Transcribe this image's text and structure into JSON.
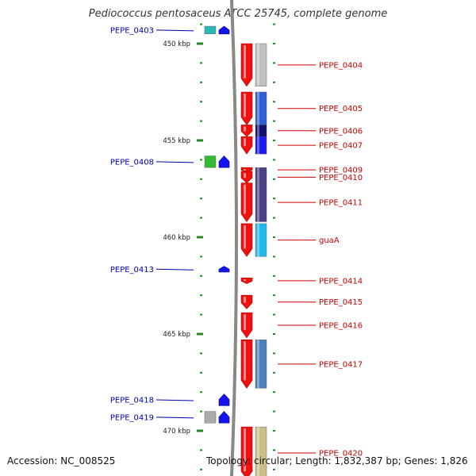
{
  "title": "Pediococcus pentosaceus ATCC 25745, complete genome",
  "accession": "Accession: NC_008525",
  "topology": "Topology: circular; Length: 1,832,387 bp; Genes: 1,826",
  "colors": {
    "forward_label": "#0000aa",
    "reverse_label": "#cc0000",
    "backbone": "#888888",
    "tick": "#228b22"
  },
  "ruler": [
    {
      "label": "450 kbp",
      "kbp": 450
    },
    {
      "label": "455 kbp",
      "kbp": 455
    },
    {
      "label": "460 kbp",
      "kbp": 460
    },
    {
      "label": "465 kbp",
      "kbp": 465
    },
    {
      "label": "470 kbp",
      "kbp": 470
    }
  ],
  "genes": [
    {
      "name": "PEPE_0403",
      "strand": "forward",
      "start_kbp": 449.1,
      "end_kbp": 449.5,
      "track_color": "#2cb8b8"
    },
    {
      "name": "PEPE_0404",
      "strand": "reverse",
      "start_kbp": 450.0,
      "end_kbp": 452.2,
      "track_color": "#c0c0c0"
    },
    {
      "name": "PEPE_0405",
      "strand": "reverse",
      "start_kbp": 452.5,
      "end_kbp": 454.2,
      "track_color": "#2f5fd0"
    },
    {
      "name": "PEPE_0406",
      "strand": "reverse",
      "start_kbp": 454.2,
      "end_kbp": 454.8,
      "track_color": "#101070"
    },
    {
      "name": "PEPE_0407",
      "strand": "reverse",
      "start_kbp": 454.8,
      "end_kbp": 455.7,
      "track_color": "#1a1aee"
    },
    {
      "name": "PEPE_0408",
      "strand": "forward",
      "start_kbp": 455.8,
      "end_kbp": 456.4,
      "track_color": "#33bb33"
    },
    {
      "name": "PEPE_0409",
      "strand": "reverse",
      "start_kbp": 456.4,
      "end_kbp": 456.6,
      "track_color": "#4b3f88"
    },
    {
      "name": "PEPE_0410",
      "strand": "reverse",
      "start_kbp": 456.6,
      "end_kbp": 457.2,
      "track_color": "#4b3f88"
    },
    {
      "name": "PEPE_0411",
      "strand": "reverse",
      "start_kbp": 457.2,
      "end_kbp": 459.2,
      "track_color": "#4b3f88"
    },
    {
      "name": "guaA",
      "strand": "reverse",
      "start_kbp": 459.3,
      "end_kbp": 461.0,
      "track_color": "#22b8e8"
    },
    {
      "name": "PEPE_0413",
      "strand": "forward",
      "start_kbp": 461.5,
      "end_kbp": 461.8,
      "track_color": ""
    },
    {
      "name": "PEPE_0414",
      "strand": "reverse",
      "start_kbp": 462.1,
      "end_kbp": 462.4,
      "track_color": ""
    },
    {
      "name": "PEPE_0415",
      "strand": "reverse",
      "start_kbp": 463.0,
      "end_kbp": 463.7,
      "track_color": ""
    },
    {
      "name": "PEPE_0416",
      "strand": "reverse",
      "start_kbp": 463.9,
      "end_kbp": 465.2,
      "track_color": ""
    },
    {
      "name": "PEPE_0417",
      "strand": "reverse",
      "start_kbp": 465.3,
      "end_kbp": 467.8,
      "track_color": "#4a80b8"
    },
    {
      "name": "PEPE_0418",
      "strand": "forward",
      "start_kbp": 468.1,
      "end_kbp": 468.7,
      "track_color": ""
    },
    {
      "name": "PEPE_0419",
      "strand": "forward",
      "start_kbp": 469.0,
      "end_kbp": 469.6,
      "track_color": "#aaaaaa"
    },
    {
      "name": "PEPE_0420",
      "strand": "reverse",
      "start_kbp": 469.8,
      "end_kbp": 472.5,
      "track_color": "#c8c088"
    }
  ]
}
